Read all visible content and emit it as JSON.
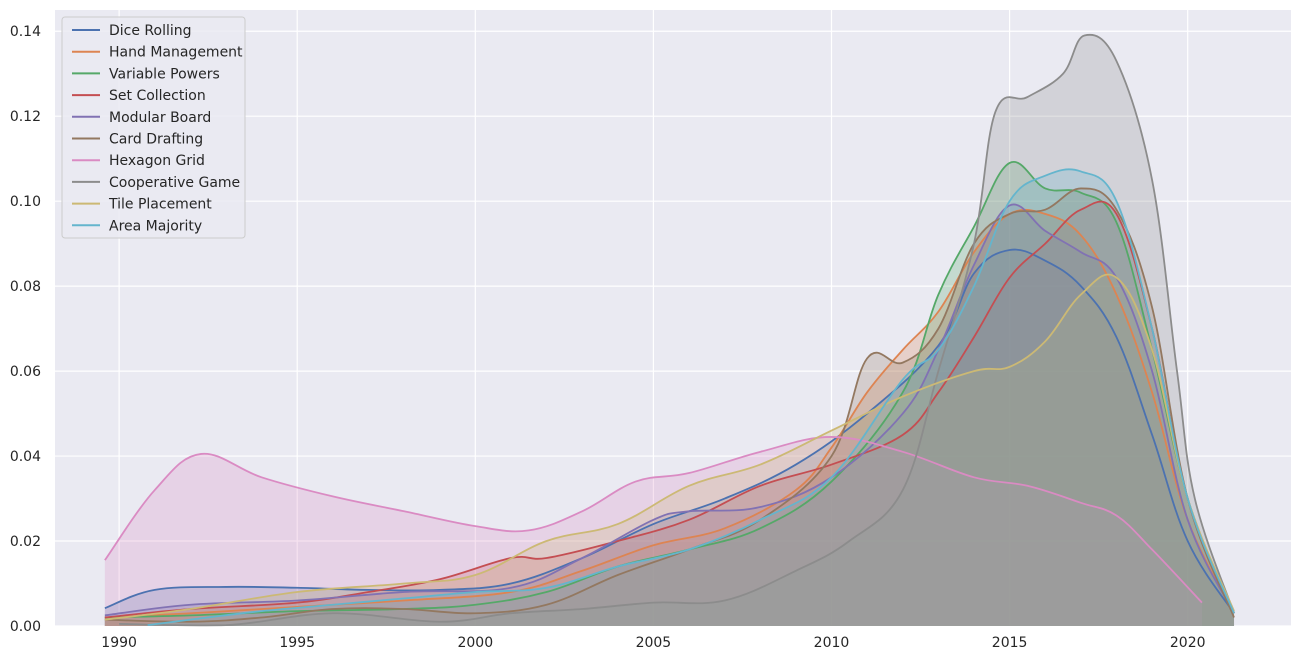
{
  "chart_data": {
    "type": "area",
    "title": "",
    "xlabel": "",
    "ylabel": "",
    "xlim": [
      1988.2,
      2022.9
    ],
    "ylim": [
      0,
      0.145
    ],
    "grid": true,
    "legend_position": "top-left",
    "x_ticks": [
      "1990",
      "1995",
      "2000",
      "2005",
      "2010",
      "2015",
      "2020"
    ],
    "x_tick_values": [
      1990,
      1995,
      2000,
      2005,
      2010,
      2015,
      2020
    ],
    "y_ticks": [
      "0.00",
      "0.02",
      "0.04",
      "0.06",
      "0.08",
      "0.10",
      "0.12",
      "0.14"
    ],
    "y_tick_values": [
      0,
      0.02,
      0.04,
      0.06,
      0.08,
      0.1,
      0.12,
      0.14
    ],
    "series": [
      {
        "name": "Dice Rolling",
        "color": "#4C72B0",
        "points": [
          [
            1989.6,
            0.0042
          ],
          [
            1991,
            0.0085
          ],
          [
            1993,
            0.0092
          ],
          [
            1995,
            0.009
          ],
          [
            1997,
            0.0085
          ],
          [
            1999,
            0.0085
          ],
          [
            2001,
            0.01
          ],
          [
            2003,
            0.016
          ],
          [
            2005,
            0.024
          ],
          [
            2007,
            0.03
          ],
          [
            2009,
            0.038
          ],
          [
            2011,
            0.05
          ],
          [
            2013,
            0.066
          ],
          [
            2014,
            0.083
          ],
          [
            2015,
            0.0885
          ],
          [
            2016,
            0.086
          ],
          [
            2017,
            0.08
          ],
          [
            2018,
            0.068
          ],
          [
            2019,
            0.045
          ],
          [
            2020,
            0.02
          ],
          [
            2021.3,
            0.003
          ]
        ]
      },
      {
        "name": "Hand Management",
        "color": "#DD8452",
        "points": [
          [
            1989.6,
            0.002
          ],
          [
            1992,
            0.003
          ],
          [
            1995,
            0.0045
          ],
          [
            1998,
            0.006
          ],
          [
            2001,
            0.008
          ],
          [
            2003,
            0.013
          ],
          [
            2005,
            0.019
          ],
          [
            2007,
            0.023
          ],
          [
            2009,
            0.032
          ],
          [
            2010,
            0.042
          ],
          [
            2011,
            0.055
          ],
          [
            2012,
            0.065
          ],
          [
            2013,
            0.074
          ],
          [
            2014,
            0.088
          ],
          [
            2015,
            0.097
          ],
          [
            2016,
            0.097
          ],
          [
            2017,
            0.092
          ],
          [
            2018,
            0.078
          ],
          [
            2019,
            0.055
          ],
          [
            2020,
            0.025
          ],
          [
            2021.3,
            0.003
          ]
        ]
      },
      {
        "name": "Variable Powers",
        "color": "#55A868",
        "points": [
          [
            1989.6,
            0.002
          ],
          [
            1992,
            0.0025
          ],
          [
            1995,
            0.0035
          ],
          [
            1998,
            0.004
          ],
          [
            2000,
            0.005
          ],
          [
            2002,
            0.008
          ],
          [
            2004,
            0.014
          ],
          [
            2006,
            0.018
          ],
          [
            2008,
            0.023
          ],
          [
            2010,
            0.034
          ],
          [
            2012,
            0.055
          ],
          [
            2013,
            0.078
          ],
          [
            2014,
            0.094
          ],
          [
            2015,
            0.109
          ],
          [
            2016,
            0.103
          ],
          [
            2017,
            0.102
          ],
          [
            2018,
            0.095
          ],
          [
            2019,
            0.065
          ],
          [
            2020,
            0.03
          ],
          [
            2021.3,
            0.003
          ]
        ]
      },
      {
        "name": "Set Collection",
        "color": "#C44E52",
        "points": [
          [
            1989.6,
            0.002
          ],
          [
            1992,
            0.004
          ],
          [
            1995,
            0.0055
          ],
          [
            1997,
            0.008
          ],
          [
            1999,
            0.011
          ],
          [
            2001,
            0.016
          ],
          [
            2002,
            0.016
          ],
          [
            2004,
            0.02
          ],
          [
            2006,
            0.025
          ],
          [
            2008,
            0.033
          ],
          [
            2010,
            0.038
          ],
          [
            2012,
            0.045
          ],
          [
            2013,
            0.055
          ],
          [
            2014,
            0.068
          ],
          [
            2015,
            0.082
          ],
          [
            2016,
            0.09
          ],
          [
            2017,
            0.098
          ],
          [
            2018,
            0.097
          ],
          [
            2019,
            0.07
          ],
          [
            2020,
            0.03
          ],
          [
            2021.3,
            0.003
          ]
        ]
      },
      {
        "name": "Modular Board",
        "color": "#8172B3",
        "points": [
          [
            1989.6,
            0.0025
          ],
          [
            1992,
            0.005
          ],
          [
            1995,
            0.006
          ],
          [
            1998,
            0.008
          ],
          [
            2001,
            0.009
          ],
          [
            2003,
            0.016
          ],
          [
            2005,
            0.025
          ],
          [
            2006,
            0.027
          ],
          [
            2008,
            0.028
          ],
          [
            2010,
            0.035
          ],
          [
            2012,
            0.05
          ],
          [
            2013,
            0.065
          ],
          [
            2014,
            0.085
          ],
          [
            2015,
            0.099
          ],
          [
            2016,
            0.093
          ],
          [
            2017,
            0.088
          ],
          [
            2018,
            0.082
          ],
          [
            2019,
            0.06
          ],
          [
            2020,
            0.025
          ],
          [
            2021.3,
            0.003
          ]
        ]
      },
      {
        "name": "Card Drafting",
        "color": "#937860",
        "points": [
          [
            1989.6,
            0.0015
          ],
          [
            1992,
            0.001
          ],
          [
            1994,
            0.002
          ],
          [
            1996,
            0.004
          ],
          [
            1998,
            0.004
          ],
          [
            2000,
            0.003
          ],
          [
            2002,
            0.005
          ],
          [
            2004,
            0.012
          ],
          [
            2006,
            0.018
          ],
          [
            2008,
            0.025
          ],
          [
            2010,
            0.04
          ],
          [
            2011,
            0.063
          ],
          [
            2012,
            0.062
          ],
          [
            2013,
            0.07
          ],
          [
            2014,
            0.09
          ],
          [
            2015,
            0.097
          ],
          [
            2016,
            0.098
          ],
          [
            2017,
            0.103
          ],
          [
            2018,
            0.098
          ],
          [
            2019,
            0.075
          ],
          [
            2020,
            0.03
          ],
          [
            2021.3,
            0.002
          ]
        ]
      },
      {
        "name": "Hexagon Grid",
        "color": "#DA8BC3",
        "points": [
          [
            1989.6,
            0.0155
          ],
          [
            1991,
            0.032
          ],
          [
            1992.3,
            0.0405
          ],
          [
            1994,
            0.035
          ],
          [
            1996,
            0.0305
          ],
          [
            1998,
            0.027
          ],
          [
            2000,
            0.0235
          ],
          [
            2001.5,
            0.0225
          ],
          [
            2003,
            0.027
          ],
          [
            2004.5,
            0.034
          ],
          [
            2006,
            0.036
          ],
          [
            2008,
            0.041
          ],
          [
            2010,
            0.0445
          ],
          [
            2012,
            0.041
          ],
          [
            2014,
            0.035
          ],
          [
            2015.5,
            0.033
          ],
          [
            2017,
            0.029
          ],
          [
            2018,
            0.026
          ],
          [
            2019,
            0.018
          ],
          [
            2020.4,
            0.0055
          ]
        ]
      },
      {
        "name": "Cooperative Game",
        "color": "#8C8C8C",
        "points": [
          [
            1990,
            0.0005
          ],
          [
            1993,
            0.0002
          ],
          [
            1996,
            0.003
          ],
          [
            1999,
            0.001
          ],
          [
            2001,
            0.003
          ],
          [
            2003,
            0.004
          ],
          [
            2005,
            0.0055
          ],
          [
            2007,
            0.006
          ],
          [
            2009,
            0.013
          ],
          [
            2010.5,
            0.02
          ],
          [
            2012,
            0.032
          ],
          [
            2013,
            0.06
          ],
          [
            2014,
            0.09
          ],
          [
            2014.6,
            0.121
          ],
          [
            2015.5,
            0.1245
          ],
          [
            2016.5,
            0.13
          ],
          [
            2017.1,
            0.139
          ],
          [
            2018,
            0.133
          ],
          [
            2019,
            0.105
          ],
          [
            2019.7,
            0.06
          ],
          [
            2020.2,
            0.03
          ],
          [
            2021.3,
            0.003
          ]
        ]
      },
      {
        "name": "Tile Placement",
        "color": "#CCB974",
        "points": [
          [
            1989.6,
            0.0015
          ],
          [
            1992,
            0.004
          ],
          [
            1995,
            0.008
          ],
          [
            1998,
            0.01
          ],
          [
            2000,
            0.012
          ],
          [
            2002,
            0.02
          ],
          [
            2004,
            0.024
          ],
          [
            2006,
            0.033
          ],
          [
            2008,
            0.038
          ],
          [
            2010,
            0.046
          ],
          [
            2012,
            0.054
          ],
          [
            2014,
            0.06
          ],
          [
            2015,
            0.061
          ],
          [
            2016,
            0.067
          ],
          [
            2017,
            0.078
          ],
          [
            2018,
            0.082
          ],
          [
            2019,
            0.065
          ],
          [
            2020,
            0.03
          ],
          [
            2021.3,
            0.0035
          ]
        ]
      },
      {
        "name": "Area Majority",
        "color": "#64B5CD",
        "points": [
          [
            1990.8,
            0.0002
          ],
          [
            1992,
            0.0015
          ],
          [
            1994,
            0.0035
          ],
          [
            1996,
            0.005
          ],
          [
            1998,
            0.0065
          ],
          [
            2000,
            0.008
          ],
          [
            2002,
            0.009
          ],
          [
            2004,
            0.014
          ],
          [
            2006,
            0.018
          ],
          [
            2008,
            0.025
          ],
          [
            2010,
            0.035
          ],
          [
            2012,
            0.058
          ],
          [
            2013,
            0.065
          ],
          [
            2014,
            0.08
          ],
          [
            2015,
            0.1
          ],
          [
            2016,
            0.106
          ],
          [
            2017,
            0.107
          ],
          [
            2018,
            0.1
          ],
          [
            2019,
            0.07
          ],
          [
            2020,
            0.03
          ],
          [
            2021.3,
            0.003
          ]
        ]
      }
    ]
  }
}
